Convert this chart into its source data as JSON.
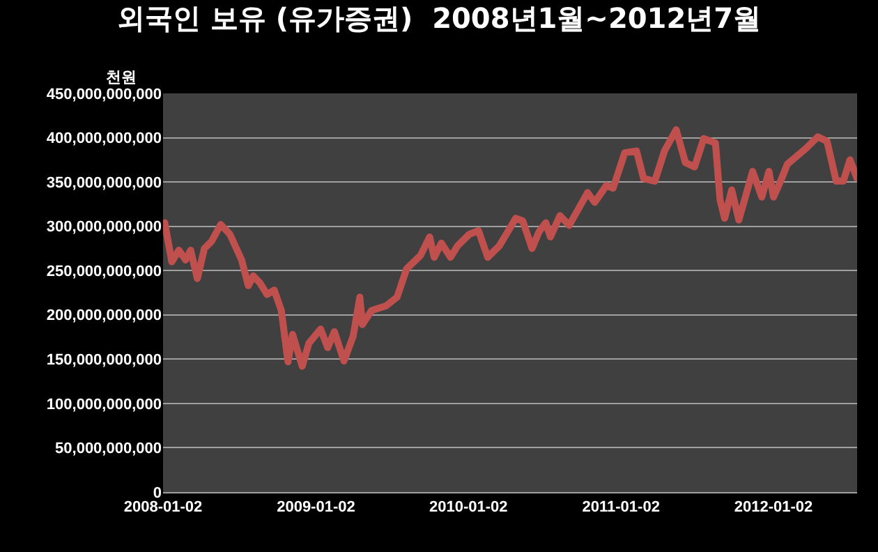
{
  "chart_data": {
    "type": "line",
    "title": "외국인 보유 (유가증권)  2008년1월~2012년7월",
    "ylabel": "천원",
    "x": [
      "2008-01-06",
      "2008-01-23",
      "2008-02-09",
      "2008-02-25",
      "2008-03-08",
      "2008-03-24",
      "2008-04-10",
      "2008-04-27",
      "2008-05-19",
      "2008-06-10",
      "2008-07-08",
      "2008-07-24",
      "2008-08-05",
      "2008-08-21",
      "2008-09-07",
      "2008-09-24",
      "2008-10-11",
      "2008-10-27",
      "2008-11-07",
      "2008-11-30",
      "2008-12-16",
      "2009-01-13",
      "2009-01-30",
      "2009-02-15",
      "2009-03-10",
      "2009-04-01",
      "2009-04-17",
      "2009-04-23",
      "2009-05-15",
      "2009-06-18",
      "2009-07-15",
      "2009-08-07",
      "2009-09-09",
      "2009-10-01",
      "2009-10-12",
      "2009-10-29",
      "2009-11-20",
      "2009-12-07",
      "2010-01-04",
      "2010-01-26",
      "2010-02-17",
      "2010-03-17",
      "2010-04-25",
      "2010-05-12",
      "2010-06-03",
      "2010-06-20",
      "2010-07-06",
      "2010-07-17",
      "2010-08-09",
      "2010-08-31",
      "2010-10-14",
      "2010-10-31",
      "2010-11-28",
      "2010-12-14",
      "2011-01-11",
      "2011-02-08",
      "2011-02-25",
      "2011-03-24",
      "2011-04-16",
      "2011-05-14",
      "2011-06-05",
      "2011-06-27",
      "2011-07-19",
      "2011-08-16",
      "2011-08-27",
      "2011-09-07",
      "2011-09-24",
      "2011-10-11",
      "2011-11-13",
      "2011-12-05",
      "2011-12-22",
      "2012-01-02",
      "2012-01-19",
      "2012-02-04",
      "2012-03-20",
      "2012-04-17",
      "2012-05-09",
      "2012-05-31",
      "2012-06-17",
      "2012-07-03",
      "2012-07-20"
    ],
    "series": [
      {
        "color": "#c0504d",
        "values": [
          304000000000,
          260000000000,
          273000000000,
          262000000000,
          273000000000,
          241000000000,
          275000000000,
          283000000000,
          302000000000,
          291000000000,
          262000000000,
          233000000000,
          244000000000,
          236000000000,
          223000000000,
          228000000000,
          205000000000,
          147000000000,
          178000000000,
          142000000000,
          168000000000,
          184000000000,
          163000000000,
          181000000000,
          148000000000,
          176000000000,
          220000000000,
          189000000000,
          205000000000,
          210000000000,
          220000000000,
          252000000000,
          267000000000,
          288000000000,
          265000000000,
          281000000000,
          265000000000,
          278000000000,
          291000000000,
          295000000000,
          265000000000,
          278000000000,
          309000000000,
          306000000000,
          275000000000,
          294000000000,
          304000000000,
          288000000000,
          312000000000,
          301000000000,
          338000000000,
          327000000000,
          346000000000,
          343000000000,
          383000000000,
          385000000000,
          354000000000,
          351000000000,
          385000000000,
          409000000000,
          372000000000,
          367000000000,
          399000000000,
          394000000000,
          330000000000,
          309000000000,
          341000000000,
          307000000000,
          362000000000,
          333000000000,
          362000000000,
          333000000000,
          351000000000,
          370000000000,
          388000000000,
          401000000000,
          396000000000,
          351000000000,
          351000000000,
          375000000000,
          354000000000
        ]
      }
    ],
    "xlim": [
      "2008-01-02",
      "2012-07-20"
    ],
    "xticks": [
      "2008-01-02",
      "2009-01-02",
      "2010-01-02",
      "2011-01-02",
      "2012-01-02"
    ],
    "ylim": [
      0,
      450000000000
    ],
    "yticks": [
      0,
      {
        "value": 50000000000,
        "label": "50,000,000,000"
      },
      {
        "value": 100000000000,
        "label": "100,000,000,000"
      },
      {
        "value": 150000000000,
        "label": "150,000,000,000"
      },
      {
        "value": 200000000000,
        "label": "200,000,000,000"
      },
      {
        "value": 250000000000,
        "label": "250,000,000,000"
      },
      {
        "value": 300000000000,
        "label": "300,000,000,000"
      },
      {
        "value": 350000000000,
        "label": "350,000,000,000"
      },
      {
        "value": 400000000000,
        "label": "400,000,000,000"
      },
      {
        "value": 450000000000,
        "label": "450,000,000,000"
      }
    ],
    "grid": "y",
    "marker": "none",
    "line_style": "solid"
  }
}
